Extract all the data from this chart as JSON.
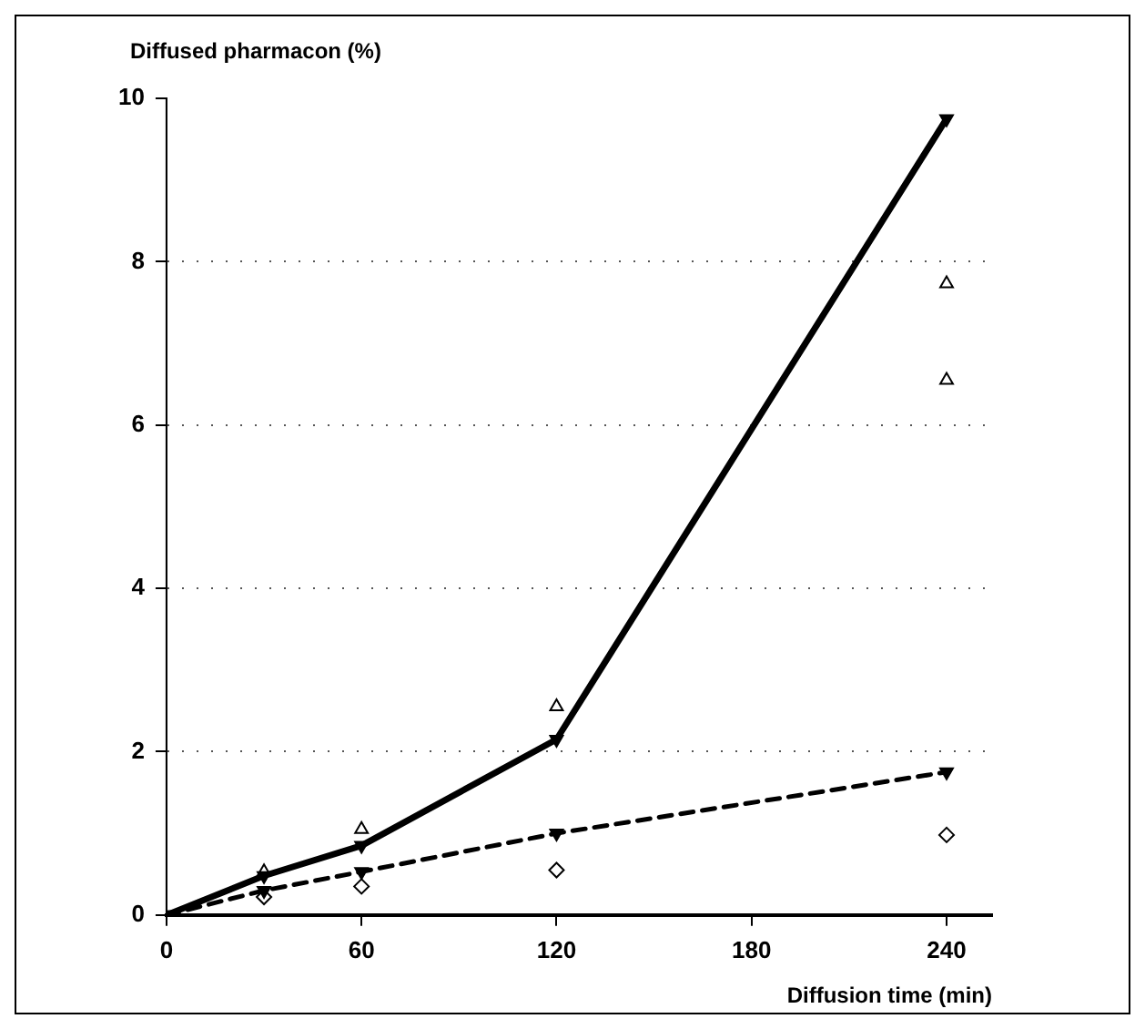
{
  "chart_data": {
    "type": "line",
    "ylabel": "Diffused pharmacon (%)",
    "xlabel": "Diffusion time (min)",
    "xlim": [
      0,
      254
    ],
    "xticks": [
      0,
      60,
      120,
      180,
      240
    ],
    "ylim": [
      0,
      10
    ],
    "yticks": [
      0,
      2,
      4,
      6,
      8,
      10
    ],
    "grid": "y",
    "legend": false,
    "series": [
      {
        "type": "line",
        "color": "#000000",
        "x": [
          0,
          30,
          60,
          120,
          240
        ],
        "values": [
          0,
          0.48,
          0.85,
          2.15,
          9.75
        ],
        "marker": "triangle",
        "line_style": "solid"
      },
      {
        "type": "line",
        "color": "#000000",
        "x": [
          0,
          30,
          60,
          120,
          240
        ],
        "values": [
          0,
          0.3,
          0.53,
          1.0,
          1.75
        ],
        "marker": "triangle",
        "line_style": "dashed"
      },
      {
        "type": "scatter",
        "color": "#000000",
        "x": [
          30,
          60,
          120,
          240
        ],
        "values": [
          0.53,
          1.05,
          2.55,
          7.73
        ],
        "marker": "triangle"
      },
      {
        "type": "scatter",
        "color": "#000000",
        "x": [
          240
        ],
        "values": [
          6.55
        ],
        "marker": "triangle"
      },
      {
        "type": "scatter",
        "color": "#000000",
        "x": [
          30,
          60,
          120,
          240
        ],
        "values": [
          0.22,
          0.35,
          0.55,
          0.98
        ],
        "marker": "diamond"
      }
    ]
  }
}
